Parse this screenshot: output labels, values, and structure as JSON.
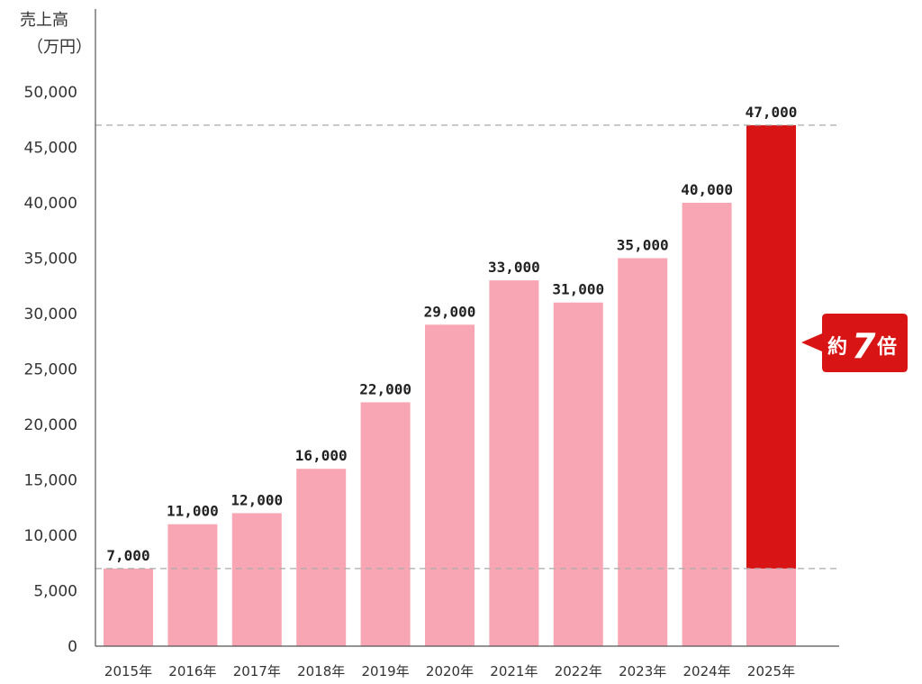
{
  "chart_data": {
    "type": "bar",
    "title": "",
    "ylabel_line1": "売上高",
    "ylabel_line2": "（万円）",
    "xlabel": "",
    "categories": [
      "2015年",
      "2016年",
      "2017年",
      "2018年",
      "2019年",
      "2020年",
      "2021年",
      "2022年",
      "2023年",
      "2024年",
      "2025年"
    ],
    "values": [
      7000,
      11000,
      12000,
      16000,
      22000,
      29000,
      33000,
      31000,
      35000,
      40000,
      47000
    ],
    "value_labels": [
      "7,000",
      "11,000",
      "12,000",
      "16,000",
      "22,000",
      "29,000",
      "33,000",
      "31,000",
      "35,000",
      "40,000",
      "47,000"
    ],
    "ylim": [
      0,
      50000
    ],
    "yticks": [
      0,
      5000,
      10000,
      15000,
      20000,
      25000,
      30000,
      35000,
      40000,
      45000,
      50000
    ],
    "ytick_labels": [
      "0",
      "5,000",
      "10,000",
      "15,000",
      "20,000",
      "25,000",
      "30,000",
      "35,000",
      "40,000",
      "45,000",
      "50,000"
    ],
    "reference_lines": [
      7000,
      47000
    ],
    "grid": false,
    "annotation": {
      "prefix": "約",
      "number": "7",
      "suffix": "倍"
    },
    "colors": {
      "bar": "#f9a6b4",
      "highlight": "#d81414",
      "highlight_label": "#d81414",
      "refline": "#aaaaaa",
      "axis": "#555555"
    }
  }
}
